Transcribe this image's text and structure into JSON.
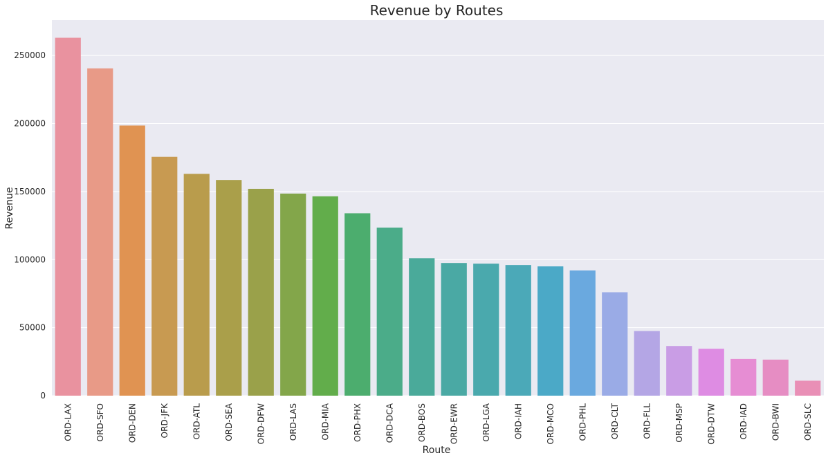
{
  "chart_data": {
    "type": "bar",
    "title": "Revenue by Routes",
    "xlabel": "Route",
    "ylabel": "Revenue",
    "ylim": [
      0,
      276000
    ],
    "yticks": [
      0,
      50000,
      100000,
      150000,
      200000,
      250000
    ],
    "grid": true,
    "categories": [
      "ORD-LAX",
      "ORD-SFO",
      "ORD-DEN",
      "ORD-JFK",
      "ORD-ATL",
      "ORD-SEA",
      "ORD-DFW",
      "ORD-LAS",
      "ORD-MIA",
      "ORD-PHX",
      "ORD-DCA",
      "ORD-BOS",
      "ORD-EWR",
      "ORD-LGA",
      "ORD-IAH",
      "ORD-MCO",
      "ORD-PHL",
      "ORD-CLT",
      "ORD-FLL",
      "ORD-MSP",
      "ORD-DTW",
      "ORD-IAD",
      "ORD-BWI",
      "ORD-SLC"
    ],
    "values": [
      263000,
      240500,
      198500,
      175500,
      163000,
      158500,
      152000,
      148500,
      146500,
      134000,
      123500,
      101000,
      97500,
      97000,
      96000,
      95000,
      92000,
      76000,
      47500,
      36500,
      34500,
      27000,
      26500,
      11000
    ],
    "colors": [
      "#e9929f",
      "#e89a87",
      "#e09352",
      "#c89a51",
      "#b99c4c",
      "#aa9f4a",
      "#9aa14a",
      "#83a64a",
      "#62ad4b",
      "#4cad6e",
      "#4bac89",
      "#4aaa9a",
      "#4aa9a4",
      "#4aa9ad",
      "#4ba9b8",
      "#4ba9c7",
      "#6aa9df",
      "#9aabe6",
      "#b4a6e5",
      "#c99de5",
      "#de8ce3",
      "#e68dd3",
      "#e68dc3",
      "#e98fb6"
    ]
  }
}
